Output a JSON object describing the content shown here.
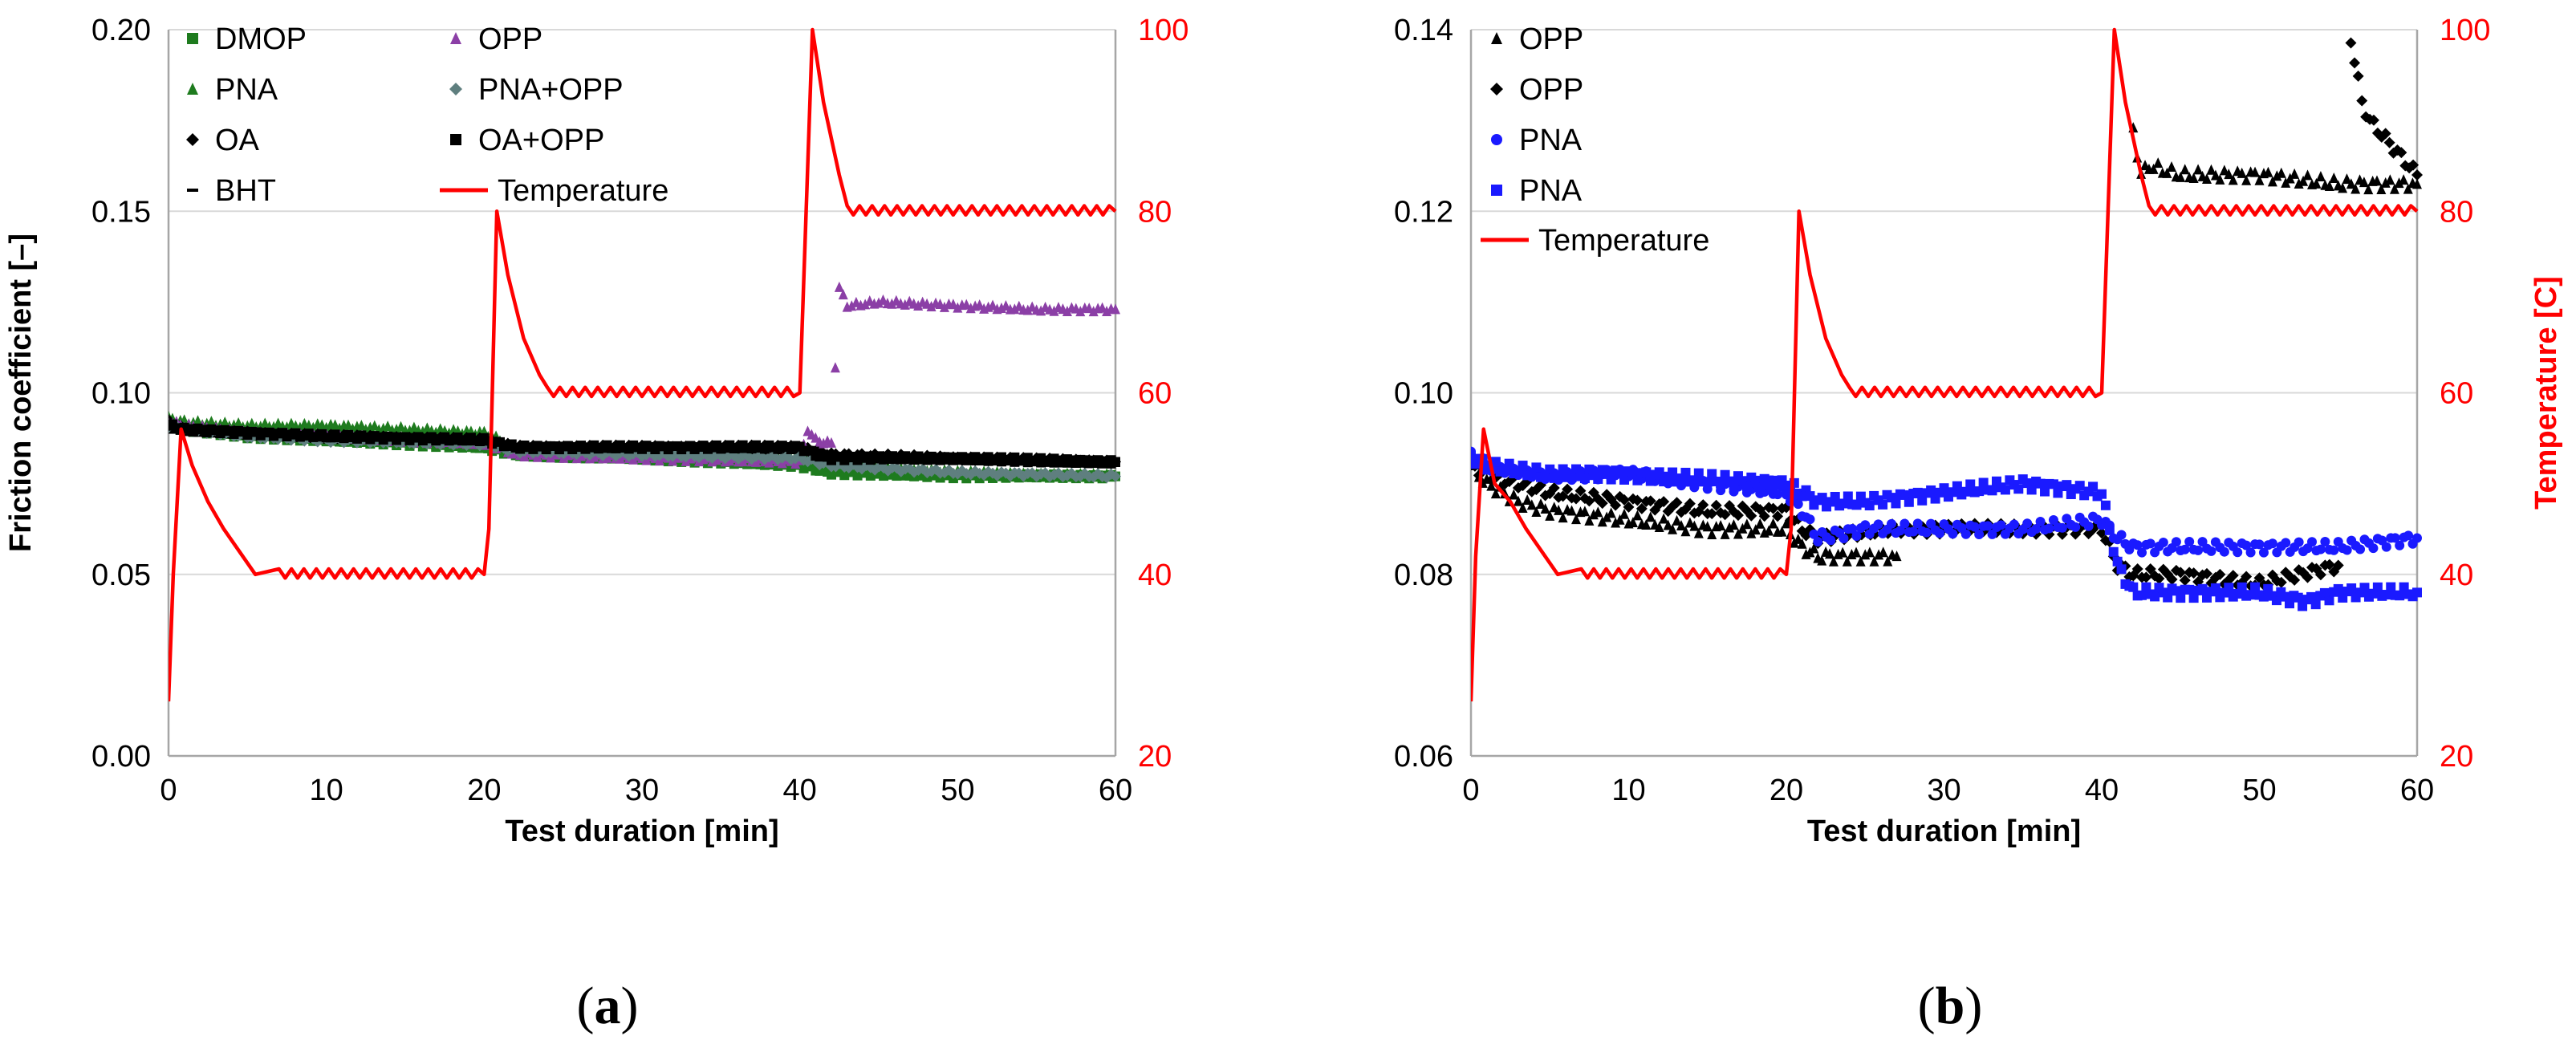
{
  "chart_data": [
    {
      "id": "a",
      "type": "scatter",
      "caption": "(a)",
      "caption_letter": "a",
      "xlabel": "Test duration [min]",
      "ylabel": "Friction coefficient [–]",
      "y2label": "",
      "xlim": [
        0,
        60
      ],
      "ylim": [
        0,
        0.2
      ],
      "y2lim": [
        20,
        100
      ],
      "xticks": [
        "0",
        "10",
        "20",
        "30",
        "40",
        "50",
        "60"
      ],
      "yticks": [
        "0.00",
        "0.05",
        "0.10",
        "0.15",
        "0.20"
      ],
      "y2ticks": [
        "20",
        "40",
        "60",
        "80",
        "100"
      ],
      "legend": [
        {
          "name": "DMOP",
          "marker": "square",
          "color": "#1e7b1e"
        },
        {
          "name": "PNA",
          "marker": "triangle",
          "color": "#1e7b1e"
        },
        {
          "name": "OA",
          "marker": "diamond",
          "color": "#000000"
        },
        {
          "name": "BHT",
          "marker": "dash",
          "color": "#000000"
        },
        {
          "name": "OPP",
          "marker": "triangle",
          "color": "#8b3fa6"
        },
        {
          "name": "PNA+OPP",
          "marker": "diamond",
          "color": "#5f7f7f"
        },
        {
          "name": "OA+OPP",
          "marker": "square",
          "color": "#000000"
        },
        {
          "name": "Temperature",
          "marker": "line",
          "color": "#ff0000"
        }
      ],
      "series": [
        {
          "name": "DMOP",
          "color": "#1e7b1e",
          "marker": "square",
          "x": [
            0,
            1,
            5,
            10,
            20,
            21,
            22,
            30,
            40,
            41,
            42,
            50,
            60
          ],
          "y": [
            0.091,
            0.09,
            0.088,
            0.087,
            0.085,
            0.084,
            0.083,
            0.082,
            0.08,
            0.079,
            0.078,
            0.077,
            0.077
          ]
        },
        {
          "name": "PNA",
          "color": "#1e7b1e",
          "marker": "triangle",
          "x": [
            0,
            1,
            5,
            10,
            20,
            21,
            22,
            30,
            40,
            41,
            42,
            50,
            60
          ],
          "y": [
            0.093,
            0.092,
            0.091,
            0.091,
            0.089,
            0.087,
            0.084,
            0.083,
            0.082,
            0.081,
            0.08,
            0.078,
            0.077
          ]
        },
        {
          "name": "OA",
          "color": "#000000",
          "marker": "diamond",
          "x": [
            0,
            1,
            5,
            10,
            20,
            21,
            22,
            30,
            40,
            41,
            42,
            50,
            60
          ],
          "y": [
            0.092,
            0.09,
            0.089,
            0.088,
            0.087,
            0.086,
            0.085,
            0.085,
            0.085,
            0.084,
            0.083,
            0.082,
            0.081
          ]
        },
        {
          "name": "BHT",
          "color": "#000000",
          "marker": "dash",
          "x": [
            0,
            1,
            5,
            10,
            20,
            21,
            22,
            30,
            40,
            41,
            42,
            50,
            60
          ],
          "y": [
            0.09,
            0.089,
            0.088,
            0.087,
            0.086,
            0.085,
            0.084,
            0.084,
            0.084,
            0.083,
            0.082,
            0.081,
            0.08
          ]
        },
        {
          "name": "OPP",
          "color": "#8b3fa6",
          "marker": "triangle",
          "x": [
            0,
            1,
            5,
            10,
            20,
            21,
            22,
            30,
            40,
            40.5,
            41,
            42,
            42.5,
            43,
            45,
            50,
            55,
            60
          ],
          "y": [
            0.092,
            0.091,
            0.089,
            0.088,
            0.086,
            0.085,
            0.083,
            0.082,
            0.081,
            0.09,
            0.087,
            0.086,
            0.129,
            0.124,
            0.125,
            0.124,
            0.123,
            0.123
          ]
        },
        {
          "name": "PNA+OPP",
          "color": "#5f7f7f",
          "marker": "diamond",
          "x": [
            0,
            1,
            5,
            10,
            20,
            21,
            22,
            30,
            40,
            41,
            42,
            50,
            60
          ],
          "y": [
            0.091,
            0.09,
            0.088,
            0.087,
            0.086,
            0.085,
            0.084,
            0.083,
            0.082,
            0.081,
            0.08,
            0.078,
            0.077
          ]
        },
        {
          "name": "OA+OPP",
          "color": "#000000",
          "marker": "square",
          "x": [
            0,
            1,
            5,
            10,
            20,
            21,
            22,
            30,
            40,
            41,
            42,
            50,
            60
          ],
          "y": [
            0.091,
            0.09,
            0.089,
            0.088,
            0.087,
            0.086,
            0.085,
            0.085,
            0.085,
            0.083,
            0.082,
            0.082,
            0.081
          ]
        }
      ],
      "temperature": {
        "name": "Temperature",
        "color": "#ff0000",
        "axis": "y2",
        "x": [
          0,
          0.3,
          0.8,
          1.5,
          2.5,
          3.5,
          5.5,
          7,
          20,
          20.3,
          20.8,
          21.5,
          22.5,
          23.5,
          24,
          40,
          40.3,
          40.8,
          41.5,
          42.5,
          43,
          60
        ],
        "y": [
          26,
          40,
          56,
          52,
          48,
          45,
          40,
          40,
          40,
          45,
          80,
          73,
          66,
          62,
          60,
          60,
          75,
          100,
          92,
          84,
          80,
          80
        ]
      }
    },
    {
      "id": "b",
      "type": "scatter",
      "caption": "(b)",
      "caption_letter": "b",
      "xlabel": "Test duration [min]",
      "ylabel": "",
      "y2label": "Temperature [C]",
      "xlim": [
        0,
        60
      ],
      "ylim": [
        0.06,
        0.14
      ],
      "y2lim": [
        20,
        100
      ],
      "xticks": [
        "0",
        "10",
        "20",
        "30",
        "40",
        "50",
        "60"
      ],
      "yticks": [
        "0.06",
        "0.08",
        "0.10",
        "0.12",
        "0.14"
      ],
      "y2ticks": [
        "20",
        "40",
        "60",
        "80",
        "100"
      ],
      "legend": [
        {
          "name": "OPP",
          "marker": "triangle",
          "color": "#000000"
        },
        {
          "name": "OPP",
          "marker": "diamond",
          "color": "#000000"
        },
        {
          "name": "PNA",
          "marker": "circle",
          "color": "#1a1aff"
        },
        {
          "name": "PNA",
          "marker": "square",
          "color": "#1a1aff"
        },
        {
          "name": "Temperature",
          "marker": "line",
          "color": "#ff0000"
        }
      ],
      "series": [
        {
          "name": "OPP",
          "color": "#000000",
          "marker": "triangle",
          "x": [
            0,
            1,
            3,
            5,
            10,
            15,
            20,
            20.5,
            21,
            22,
            23,
            25,
            27
          ],
          "y": [
            0.092,
            0.09,
            0.088,
            0.087,
            0.086,
            0.085,
            0.085,
            0.084,
            0.083,
            0.082,
            0.082,
            0.082,
            0.082
          ]
        },
        {
          "name": "OPP",
          "color": "#000000",
          "marker": "diamond",
          "x": [
            0,
            1,
            3,
            5,
            10,
            15,
            20,
            21,
            22,
            27,
            30,
            35,
            40,
            41,
            42,
            45,
            50,
            55
          ],
          "y": [
            0.092,
            0.091,
            0.09,
            0.089,
            0.088,
            0.087,
            0.087,
            0.085,
            0.084,
            0.085,
            0.085,
            0.085,
            0.085,
            0.081,
            0.08,
            0.08,
            0.079,
            0.081
          ]
        },
        {
          "name": "PNA",
          "color": "#1a1aff",
          "marker": "circle",
          "x": [
            0,
            1,
            5,
            10,
            20,
            21,
            22,
            25,
            30,
            35,
            40,
            41,
            42,
            45,
            50,
            55,
            60
          ],
          "y": [
            0.093,
            0.092,
            0.091,
            0.091,
            0.089,
            0.087,
            0.084,
            0.085,
            0.085,
            0.085,
            0.086,
            0.084,
            0.083,
            0.083,
            0.083,
            0.083,
            0.084
          ]
        },
        {
          "name": "PNA",
          "color": "#1a1aff",
          "marker": "square",
          "x": [
            0,
            1,
            5,
            10,
            20,
            21,
            22,
            25,
            30,
            35,
            40,
            41,
            42,
            45,
            50,
            53,
            55,
            60
          ],
          "y": [
            0.093,
            0.092,
            0.091,
            0.091,
            0.09,
            0.089,
            0.088,
            0.088,
            0.089,
            0.09,
            0.089,
            0.081,
            0.078,
            0.078,
            0.078,
            0.077,
            0.078,
            0.078
          ]
        },
        {
          "name": "OPP",
          "color": "#000000",
          "marker": "triangle",
          "x": [
            42,
            42.5,
            43,
            45,
            50,
            55,
            58,
            60
          ],
          "y": [
            0.129,
            0.124,
            0.125,
            0.124,
            0.124,
            0.123,
            0.123,
            0.123
          ]
        },
        {
          "name": "OPP",
          "color": "#000000",
          "marker": "diamond",
          "x": [
            55.8,
            56.5,
            57,
            58,
            59,
            60
          ],
          "y": [
            0.139,
            0.132,
            0.13,
            0.128,
            0.126,
            0.124
          ]
        }
      ],
      "temperature": {
        "name": "Temperature",
        "color": "#ff0000",
        "axis": "y2",
        "x": [
          0,
          0.3,
          0.8,
          1.5,
          2.5,
          3.5,
          5.5,
          7,
          20,
          20.3,
          20.8,
          21.5,
          22.5,
          23.5,
          24,
          40,
          40.3,
          40.8,
          41.5,
          42.5,
          43,
          60
        ],
        "y": [
          26,
          42,
          56,
          50,
          48,
          45,
          40,
          40,
          40,
          45,
          80,
          73,
          66,
          62,
          60,
          60,
          75,
          100,
          92,
          84,
          80,
          80
        ]
      }
    }
  ]
}
